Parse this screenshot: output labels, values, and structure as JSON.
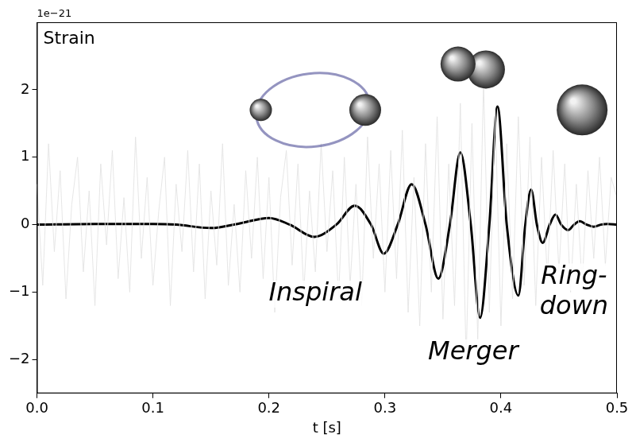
{
  "chart_data": {
    "type": "line",
    "title": "Strain",
    "y_scale_text": "1e−21",
    "x_label": "t [s]",
    "annotations": [
      "Inspiral",
      "Merger",
      "Ring-down"
    ],
    "xlim": [
      0,
      0.5
    ],
    "xticks": [
      {
        "value": 0,
        "label": "0.0"
      },
      0.1,
      0.2,
      0.3,
      0.4,
      0.5
    ],
    "ylim": [
      -2.5,
      3.0
    ],
    "yticks": [
      {
        "value": -2,
        "label": "−2"
      },
      {
        "value": -1,
        "label": "−1"
      },
      0,
      1,
      2
    ],
    "grid": false,
    "series": [
      {
        "color": "#e3e3e3",
        "line_style": "solid",
        "x": [
          0,
          0.005,
          0.01,
          0.015,
          0.02,
          0.025,
          0.03,
          0.035,
          0.04,
          0.045,
          0.05,
          0.055,
          0.06,
          0.065,
          0.07,
          0.075,
          0.08,
          0.085,
          0.09,
          0.095,
          0.1,
          0.105,
          0.11,
          0.115,
          0.12,
          0.125,
          0.13,
          0.135,
          0.14,
          0.145,
          0.15,
          0.155,
          0.16,
          0.165,
          0.17,
          0.175,
          0.18,
          0.185,
          0.19,
          0.195,
          0.2,
          0.205,
          0.21,
          0.215,
          0.22,
          0.225,
          0.23,
          0.235,
          0.24,
          0.245,
          0.25,
          0.255,
          0.26,
          0.265,
          0.27,
          0.275,
          0.28,
          0.285,
          0.29,
          0.295,
          0.3,
          0.305,
          0.31,
          0.315,
          0.32,
          0.325,
          0.33,
          0.335,
          0.34,
          0.345,
          0.35,
          0.355,
          0.36,
          0.365,
          0.37,
          0.375,
          0.38,
          0.385,
          0.39,
          0.395,
          0.4,
          0.405,
          0.41,
          0.415,
          0.42,
          0.425,
          0.43,
          0.435,
          0.44,
          0.445,
          0.45,
          0.455,
          0.46,
          0.465,
          0.47,
          0.475,
          0.48,
          0.485,
          0.49,
          0.495,
          0.5
        ],
        "values": [
          0.6,
          -0.9,
          1.2,
          -0.4,
          0.8,
          -1.1,
          0.3,
          1.0,
          -0.7,
          0.5,
          -1.2,
          0.9,
          -0.3,
          1.1,
          -0.8,
          0.4,
          -1.0,
          1.3,
          -0.5,
          0.7,
          -0.9,
          0.2,
          1.0,
          -1.2,
          0.6,
          -0.4,
          1.1,
          -0.7,
          0.9,
          -1.1,
          0.5,
          -0.6,
          1.2,
          -0.9,
          0.3,
          -1.0,
          0.8,
          -0.5,
          1.0,
          -0.8,
          0.7,
          -1.3,
          0.4,
          1.1,
          -0.6,
          0.9,
          -1.0,
          0.5,
          -0.7,
          1.2,
          -0.4,
          0.8,
          -1.1,
          1.0,
          -0.9,
          0.6,
          -1.2,
          1.3,
          -0.5,
          0.9,
          -1.0,
          1.1,
          -0.8,
          1.4,
          -1.3,
          0.7,
          -1.5,
          1.2,
          -1.0,
          1.6,
          -1.4,
          0.9,
          -1.2,
          1.8,
          -2.0,
          1.5,
          -1.7,
          2.1,
          -1.3,
          1.7,
          -1.5,
          1.2,
          -1.1,
          1.6,
          -0.9,
          1.3,
          -1.2,
          1.0,
          -0.8,
          1.1,
          -0.7,
          0.9,
          -1.0,
          0.6,
          -0.9,
          0.8,
          -0.5,
          1.0,
          -0.6,
          0.7,
          0.4
        ]
      },
      {
        "color": "#000000",
        "line_style": "solid",
        "x": [
          0,
          0.05,
          0.1,
          0.12,
          0.15,
          0.175,
          0.2,
          0.218,
          0.239,
          0.258,
          0.274,
          0.288,
          0.299,
          0.311,
          0.323,
          0.335,
          0.346,
          0.356,
          0.365,
          0.374,
          0.382,
          0.39,
          0.397,
          0.405,
          0.415,
          0.421,
          0.426,
          0.431,
          0.436,
          0.442,
          0.447,
          0.452,
          0.458,
          0.463,
          0.468,
          0.474,
          0.48,
          0.486,
          0.492,
          0.5
        ],
        "values": [
          0,
          0.01,
          0.01,
          0,
          -0.05,
          0.02,
          0.1,
          0,
          -0.18,
          0,
          0.28,
          0,
          -0.43,
          0,
          0.6,
          0,
          -0.8,
          0,
          1.07,
          0,
          -1.38,
          0,
          1.75,
          0,
          -1.05,
          0,
          0.52,
          0,
          -0.27,
          0,
          0.15,
          0,
          -0.08,
          0,
          0.05,
          0,
          -0.03,
          0,
          0.01,
          0
        ]
      }
    ]
  }
}
